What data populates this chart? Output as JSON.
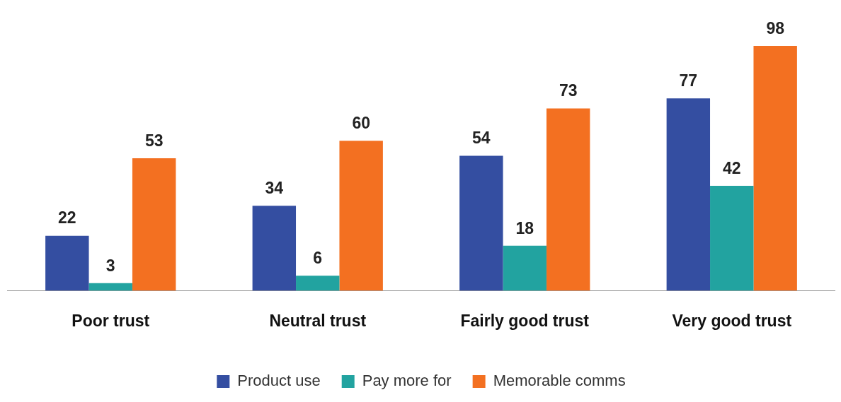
{
  "chart_data": {
    "type": "bar",
    "categories": [
      "Poor trust",
      "Neutral trust",
      "Fairly good trust",
      "Very good trust"
    ],
    "series": [
      {
        "name": "Product use",
        "color": "#344ea1",
        "values": [
          22,
          34,
          54,
          77
        ]
      },
      {
        "name": "Pay more for",
        "color": "#22a3a0",
        "values": [
          3,
          6,
          18,
          42
        ]
      },
      {
        "name": "Memorable comms",
        "color": "#f37021",
        "values": [
          53,
          60,
          73,
          98
        ]
      }
    ],
    "data_labels": true,
    "grid": false,
    "legend": "bottom"
  }
}
